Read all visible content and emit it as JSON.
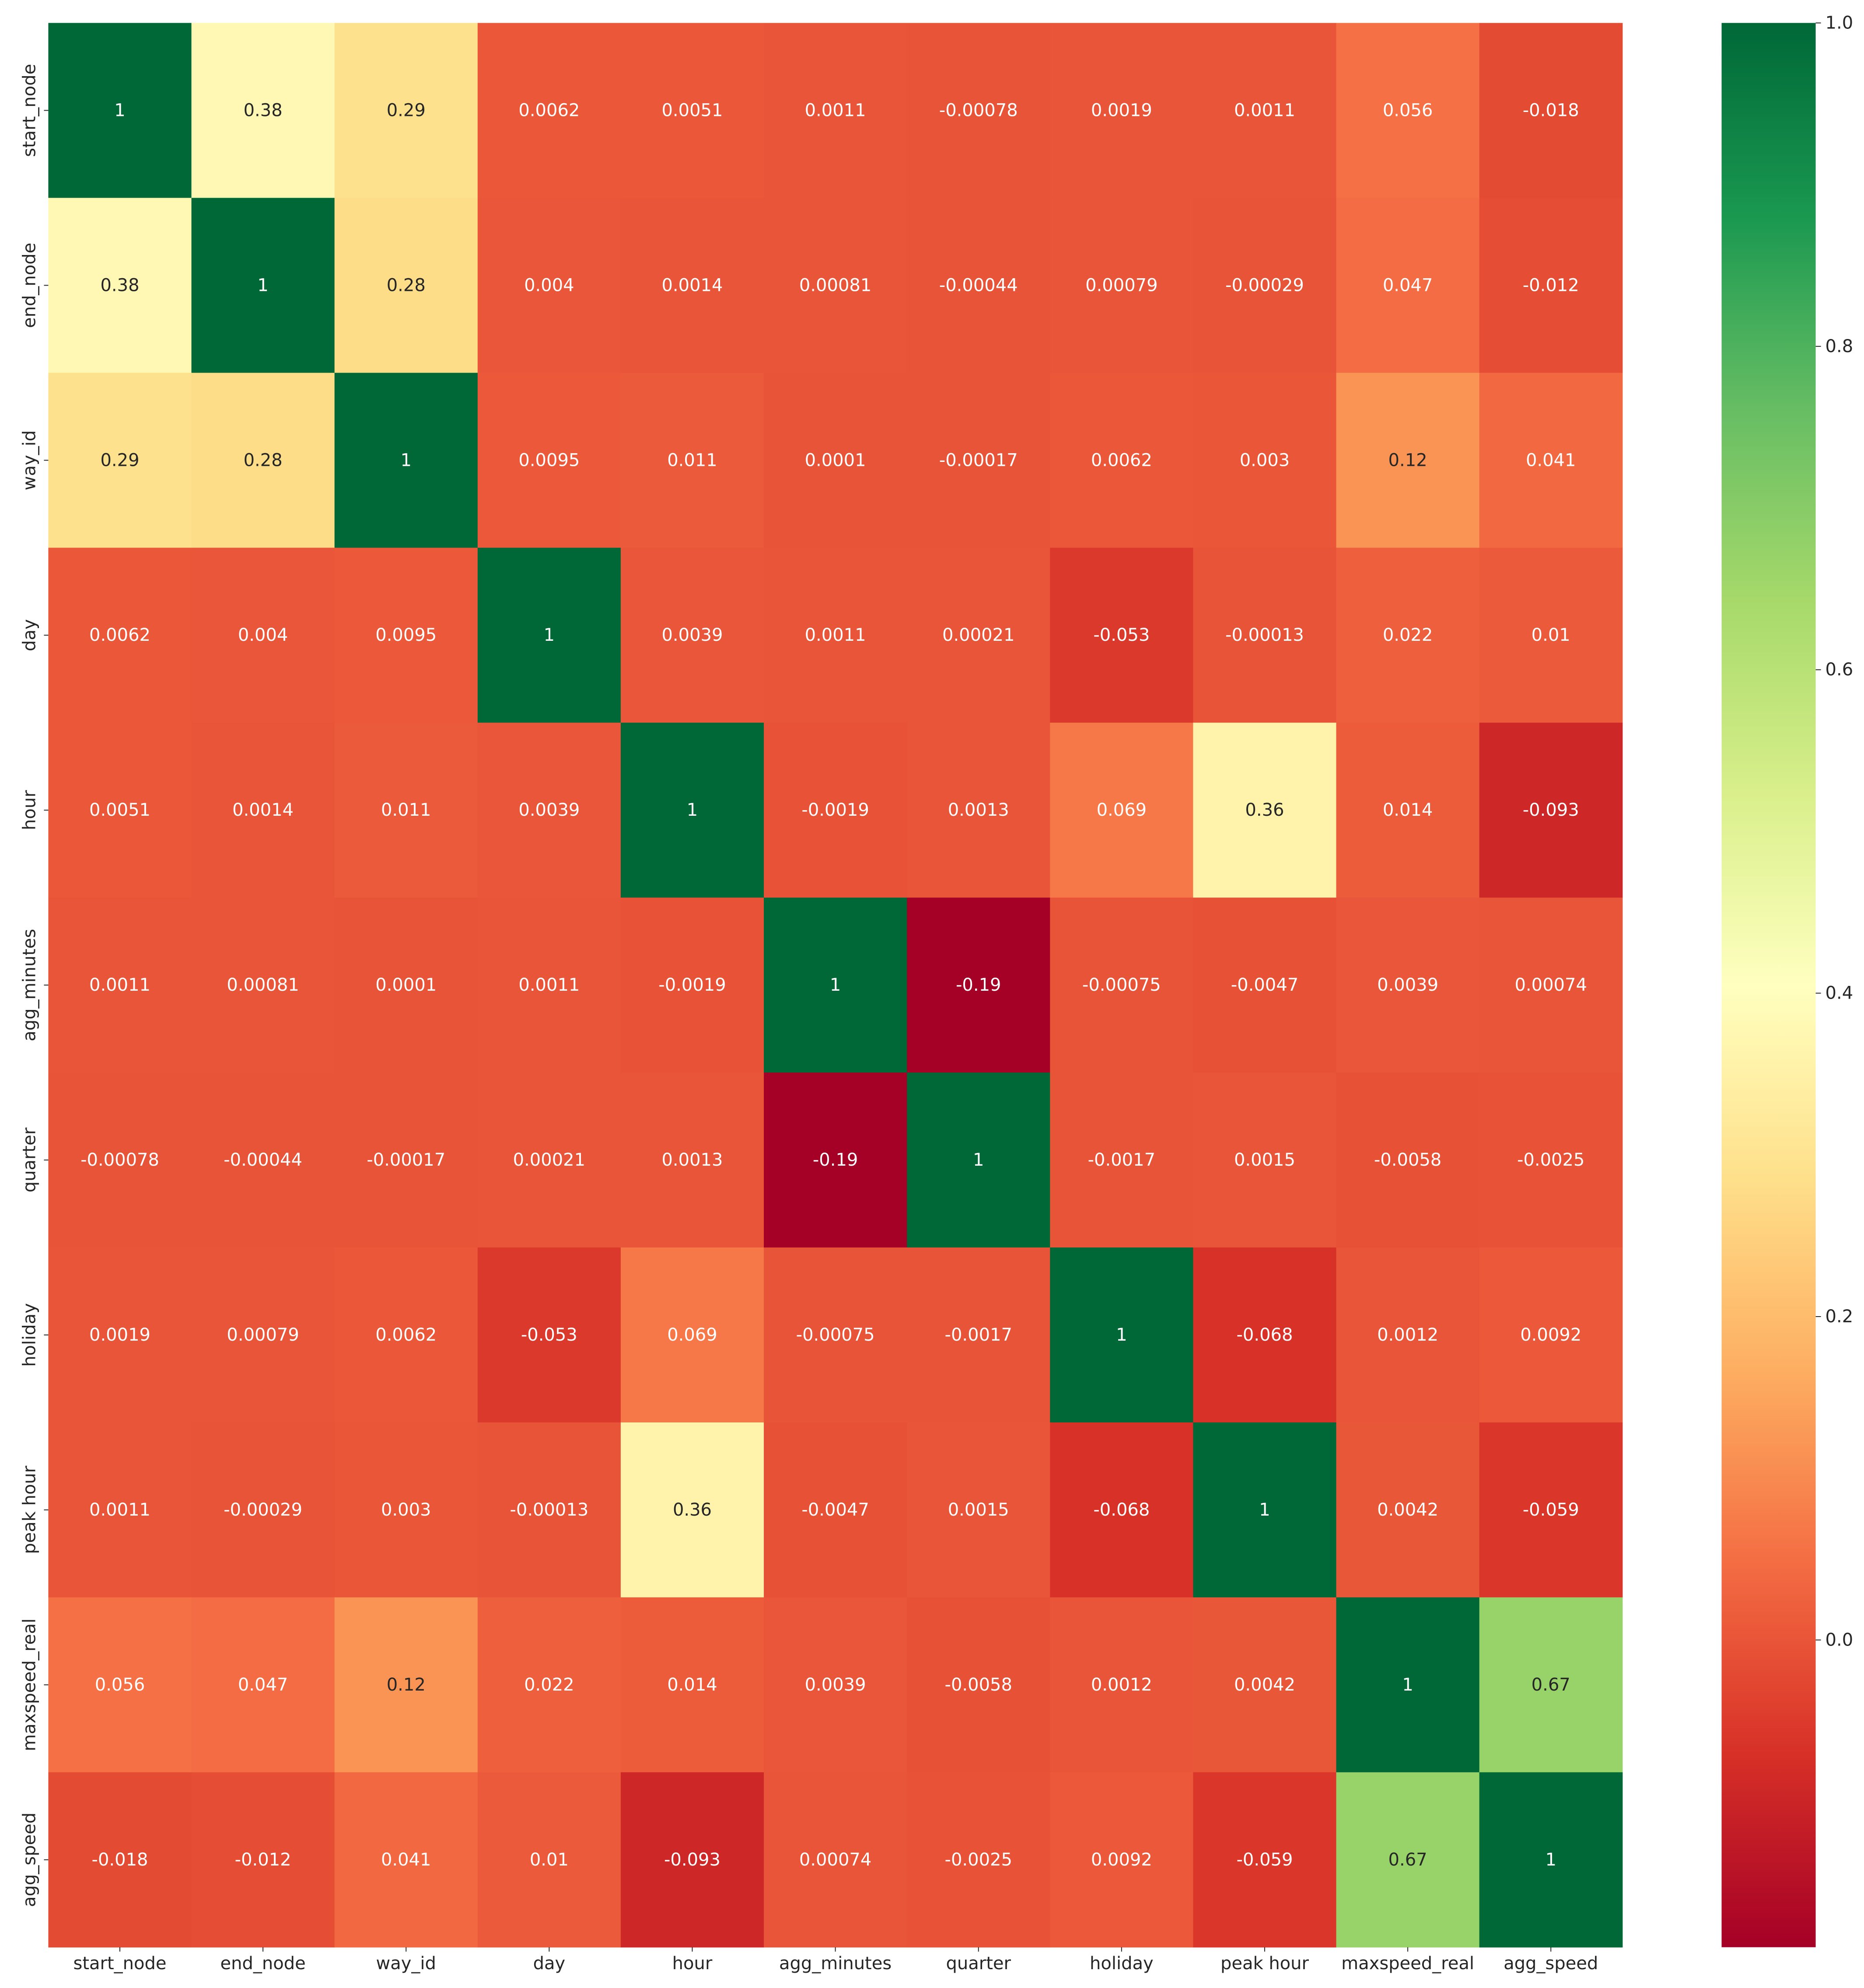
{
  "chart_data": {
    "type": "heatmap",
    "title": "",
    "xlabel": "",
    "ylabel": "",
    "colormap": "RdYlGn",
    "vmin": -0.19,
    "vmax": 1.0,
    "x_categories": [
      "start_node",
      "end_node",
      "way_id",
      "day",
      "hour",
      "agg_minutes",
      "quarter",
      "holiday",
      "peak hour",
      "maxspeed_real",
      "agg_speed"
    ],
    "y_categories": [
      "start_node",
      "end_node",
      "way_id",
      "day",
      "hour",
      "agg_minutes",
      "quarter",
      "holiday",
      "peak hour",
      "maxspeed_real",
      "agg_speed"
    ],
    "values": [
      [
        1,
        0.38,
        0.29,
        0.0062,
        0.0051,
        0.0011,
        -0.00078,
        0.0019,
        0.0011,
        0.056,
        -0.018
      ],
      [
        0.38,
        1,
        0.28,
        0.004,
        0.0014,
        0.00081,
        -0.00044,
        0.00079,
        -0.00029,
        0.047,
        -0.012
      ],
      [
        0.29,
        0.28,
        1,
        0.0095,
        0.011,
        0.0001,
        -0.00017,
        0.0062,
        0.003,
        0.12,
        0.041
      ],
      [
        0.0062,
        0.004,
        0.0095,
        1,
        0.0039,
        0.0011,
        0.00021,
        -0.053,
        -0.00013,
        0.022,
        0.01
      ],
      [
        0.0051,
        0.0014,
        0.011,
        0.0039,
        1,
        -0.0019,
        0.0013,
        0.069,
        0.36,
        0.014,
        -0.093
      ],
      [
        0.0011,
        0.00081,
        0.0001,
        0.0011,
        -0.0019,
        1,
        -0.19,
        -0.00075,
        -0.0047,
        0.0039,
        0.00074
      ],
      [
        -0.00078,
        -0.00044,
        -0.00017,
        0.00021,
        0.0013,
        -0.19,
        1,
        -0.0017,
        0.0015,
        -0.0058,
        -0.0025
      ],
      [
        0.0019,
        0.00079,
        0.0062,
        -0.053,
        0.069,
        -0.00075,
        -0.0017,
        1,
        -0.068,
        0.0012,
        0.0092
      ],
      [
        0.0011,
        -0.00029,
        0.003,
        -0.00013,
        0.36,
        -0.0047,
        0.0015,
        -0.068,
        1,
        0.0042,
        -0.059
      ],
      [
        0.056,
        0.047,
        0.12,
        0.022,
        0.014,
        0.0039,
        -0.0058,
        0.0012,
        0.0042,
        1,
        0.67
      ],
      [
        -0.018,
        -0.012,
        0.041,
        0.01,
        -0.093,
        0.00074,
        -0.0025,
        0.0092,
        -0.059,
        0.67,
        1
      ]
    ],
    "colorbar": {
      "ticks": [
        1.0,
        0.8,
        0.6,
        0.4,
        0.2,
        0.0
      ],
      "tick_labels": [
        "1.0",
        "0.8",
        "0.6",
        "0.4",
        "0.2",
        "0.0"
      ]
    },
    "grid": false,
    "legend": "colorbar-right"
  }
}
